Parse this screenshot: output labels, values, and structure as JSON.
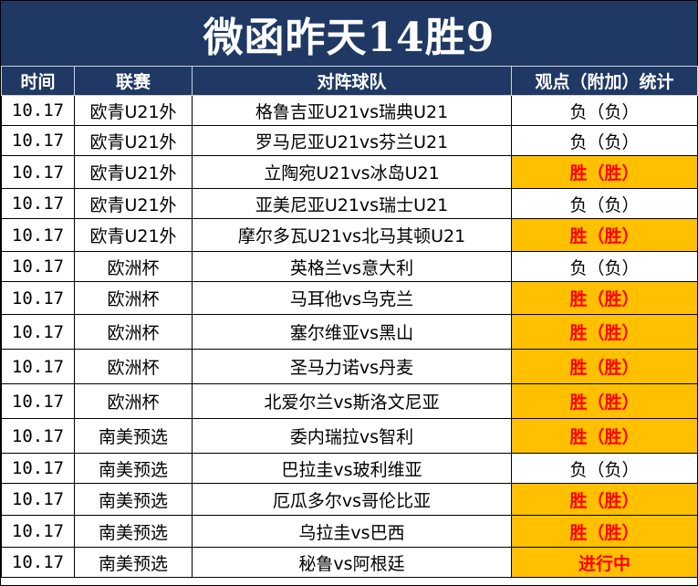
{
  "title": "微函昨天14胜9",
  "headers": {
    "time": "时间",
    "league": "联赛",
    "match": "对阵球队",
    "result": "观点（附加）统计"
  },
  "colors": {
    "header_bg": "#1f3864",
    "win_bg": "#ffc000",
    "win_text": "#ff0000",
    "lose_bg": "#ffffff"
  },
  "rows": [
    {
      "time": "10.17",
      "league": "欧青U21外",
      "match": "格鲁吉亚U21vs瑞典U21",
      "result": "负（负）",
      "status": "lose"
    },
    {
      "time": "10.17",
      "league": "欧青U21外",
      "match": "罗马尼亚U21vs芬兰U21",
      "result": "负（负）",
      "status": "lose"
    },
    {
      "time": "10.17",
      "league": "欧青U21外",
      "match": "立陶宛U21vs冰岛U21",
      "result": "胜（胜）",
      "status": "win"
    },
    {
      "time": "10.17",
      "league": "欧青U21外",
      "match": "亚美尼亚U21vs瑞士U21",
      "result": "负（负）",
      "status": "lose"
    },
    {
      "time": "10.17",
      "league": "欧青U21外",
      "match": "摩尔多瓦U21vs北马其顿U21",
      "result": "胜（胜）",
      "status": "win"
    },
    {
      "time": "10.17",
      "league": "欧洲杯",
      "match": "英格兰vs意大利",
      "result": "负（负）",
      "status": "lose"
    },
    {
      "time": "10.17",
      "league": "欧洲杯",
      "match": "马耳他vs乌克兰",
      "result": "胜（胜）",
      "status": "win"
    },
    {
      "time": "10.17",
      "league": "欧洲杯",
      "match": "塞尔维亚vs黑山",
      "result": "胜（胜）",
      "status": "win"
    },
    {
      "time": "10.17",
      "league": "欧洲杯",
      "match": "圣马力诺vs丹麦",
      "result": "胜（胜）",
      "status": "win"
    },
    {
      "time": "10.17",
      "league": "欧洲杯",
      "match": "北爱尔兰vs斯洛文尼亚",
      "result": "胜（胜）",
      "status": "win"
    },
    {
      "time": "10.17",
      "league": "南美预选",
      "match": "委内瑞拉vs智利",
      "result": "胜（胜）",
      "status": "win"
    },
    {
      "time": "10.17",
      "league": "南美预选",
      "match": "巴拉圭vs玻利维亚",
      "result": "负（负）",
      "status": "lose"
    },
    {
      "time": "10.17",
      "league": "南美预选",
      "match": "厄瓜多尔vs哥伦比亚",
      "result": "胜（胜）",
      "status": "win"
    },
    {
      "time": "10.17",
      "league": "南美预选",
      "match": "乌拉圭vs巴西",
      "result": "胜（胜）",
      "status": "win"
    },
    {
      "time": "10.17",
      "league": "南美预选",
      "match": "秘鲁vs阿根廷",
      "result": "进行中",
      "status": "live"
    }
  ]
}
